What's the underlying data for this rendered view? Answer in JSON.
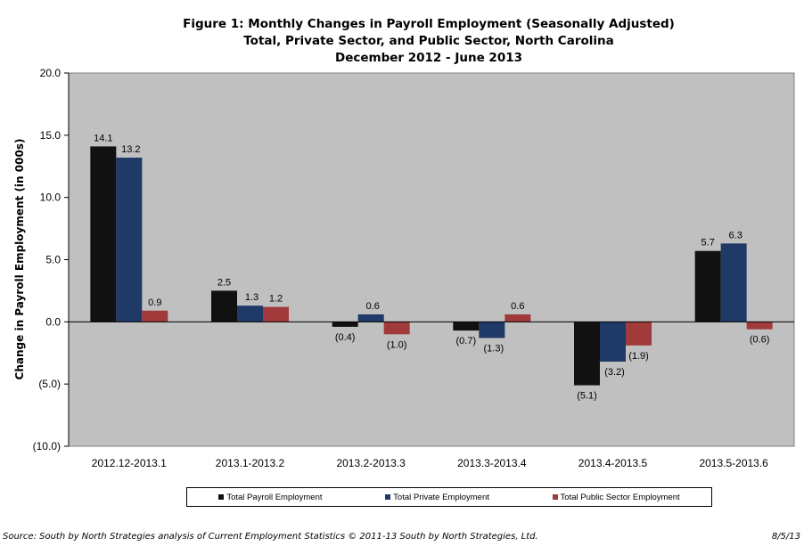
{
  "chart_data": {
    "type": "bar",
    "title": "Figure 1: Monthly Changes in Payroll Employment (Seasonally Adjusted)",
    "subtitle_lines": [
      "Total, Private Sector, and Public Sector, North Carolina",
      "December 2012 -  June 2013"
    ],
    "ylabel": "Change  in Payroll Employment (in 000s)",
    "xlabel": "",
    "ylim": [
      -10,
      20
    ],
    "yticks": [
      20.0,
      15.0,
      10.0,
      5.0,
      0.0,
      -5.0,
      -10.0
    ],
    "ytick_labels": [
      "20.0",
      "15.0",
      "10.0",
      "5.0",
      "0.0",
      "(5.0)",
      "(10.0)"
    ],
    "categories": [
      "2012.12-2013.1",
      "2013.1-2013.2",
      "2013.2-2013.3",
      "2013.3-2013.4",
      "2013.4-2013.5",
      "2013.5-2013.6"
    ],
    "series": [
      {
        "name": "Total Payroll Employment",
        "color": "#111111",
        "values": [
          14.1,
          2.5,
          -0.4,
          -0.7,
          -5.1,
          5.7
        ],
        "labels": [
          "14.1",
          "2.5",
          "(0.4)",
          "(0.7)",
          "(5.1)",
          "5.7"
        ]
      },
      {
        "name": "Total Private Employment",
        "color": "#1f3a66",
        "values": [
          13.2,
          1.3,
          0.6,
          -1.3,
          -3.2,
          6.3
        ],
        "labels": [
          "13.2",
          "1.3",
          "0.6",
          "(1.3)",
          "(3.2)",
          "6.3"
        ]
      },
      {
        "name": "Total Public Sector Employment",
        "color": "#a13a3a",
        "values": [
          0.9,
          1.2,
          -1.0,
          0.6,
          -1.9,
          -0.6
        ],
        "labels": [
          "0.9",
          "1.2",
          "(1.0)",
          "0.6",
          "(1.9)",
          "(0.6)"
        ]
      }
    ],
    "plot_background": "#c0c0c0",
    "grid": false,
    "legend_position": "bottom"
  },
  "footer": {
    "source": "Source: South by North Strategies analysis of Current Employment Statistics  © 2011-13 South by North Strategies, Ltd.",
    "date": "8/5/13"
  }
}
